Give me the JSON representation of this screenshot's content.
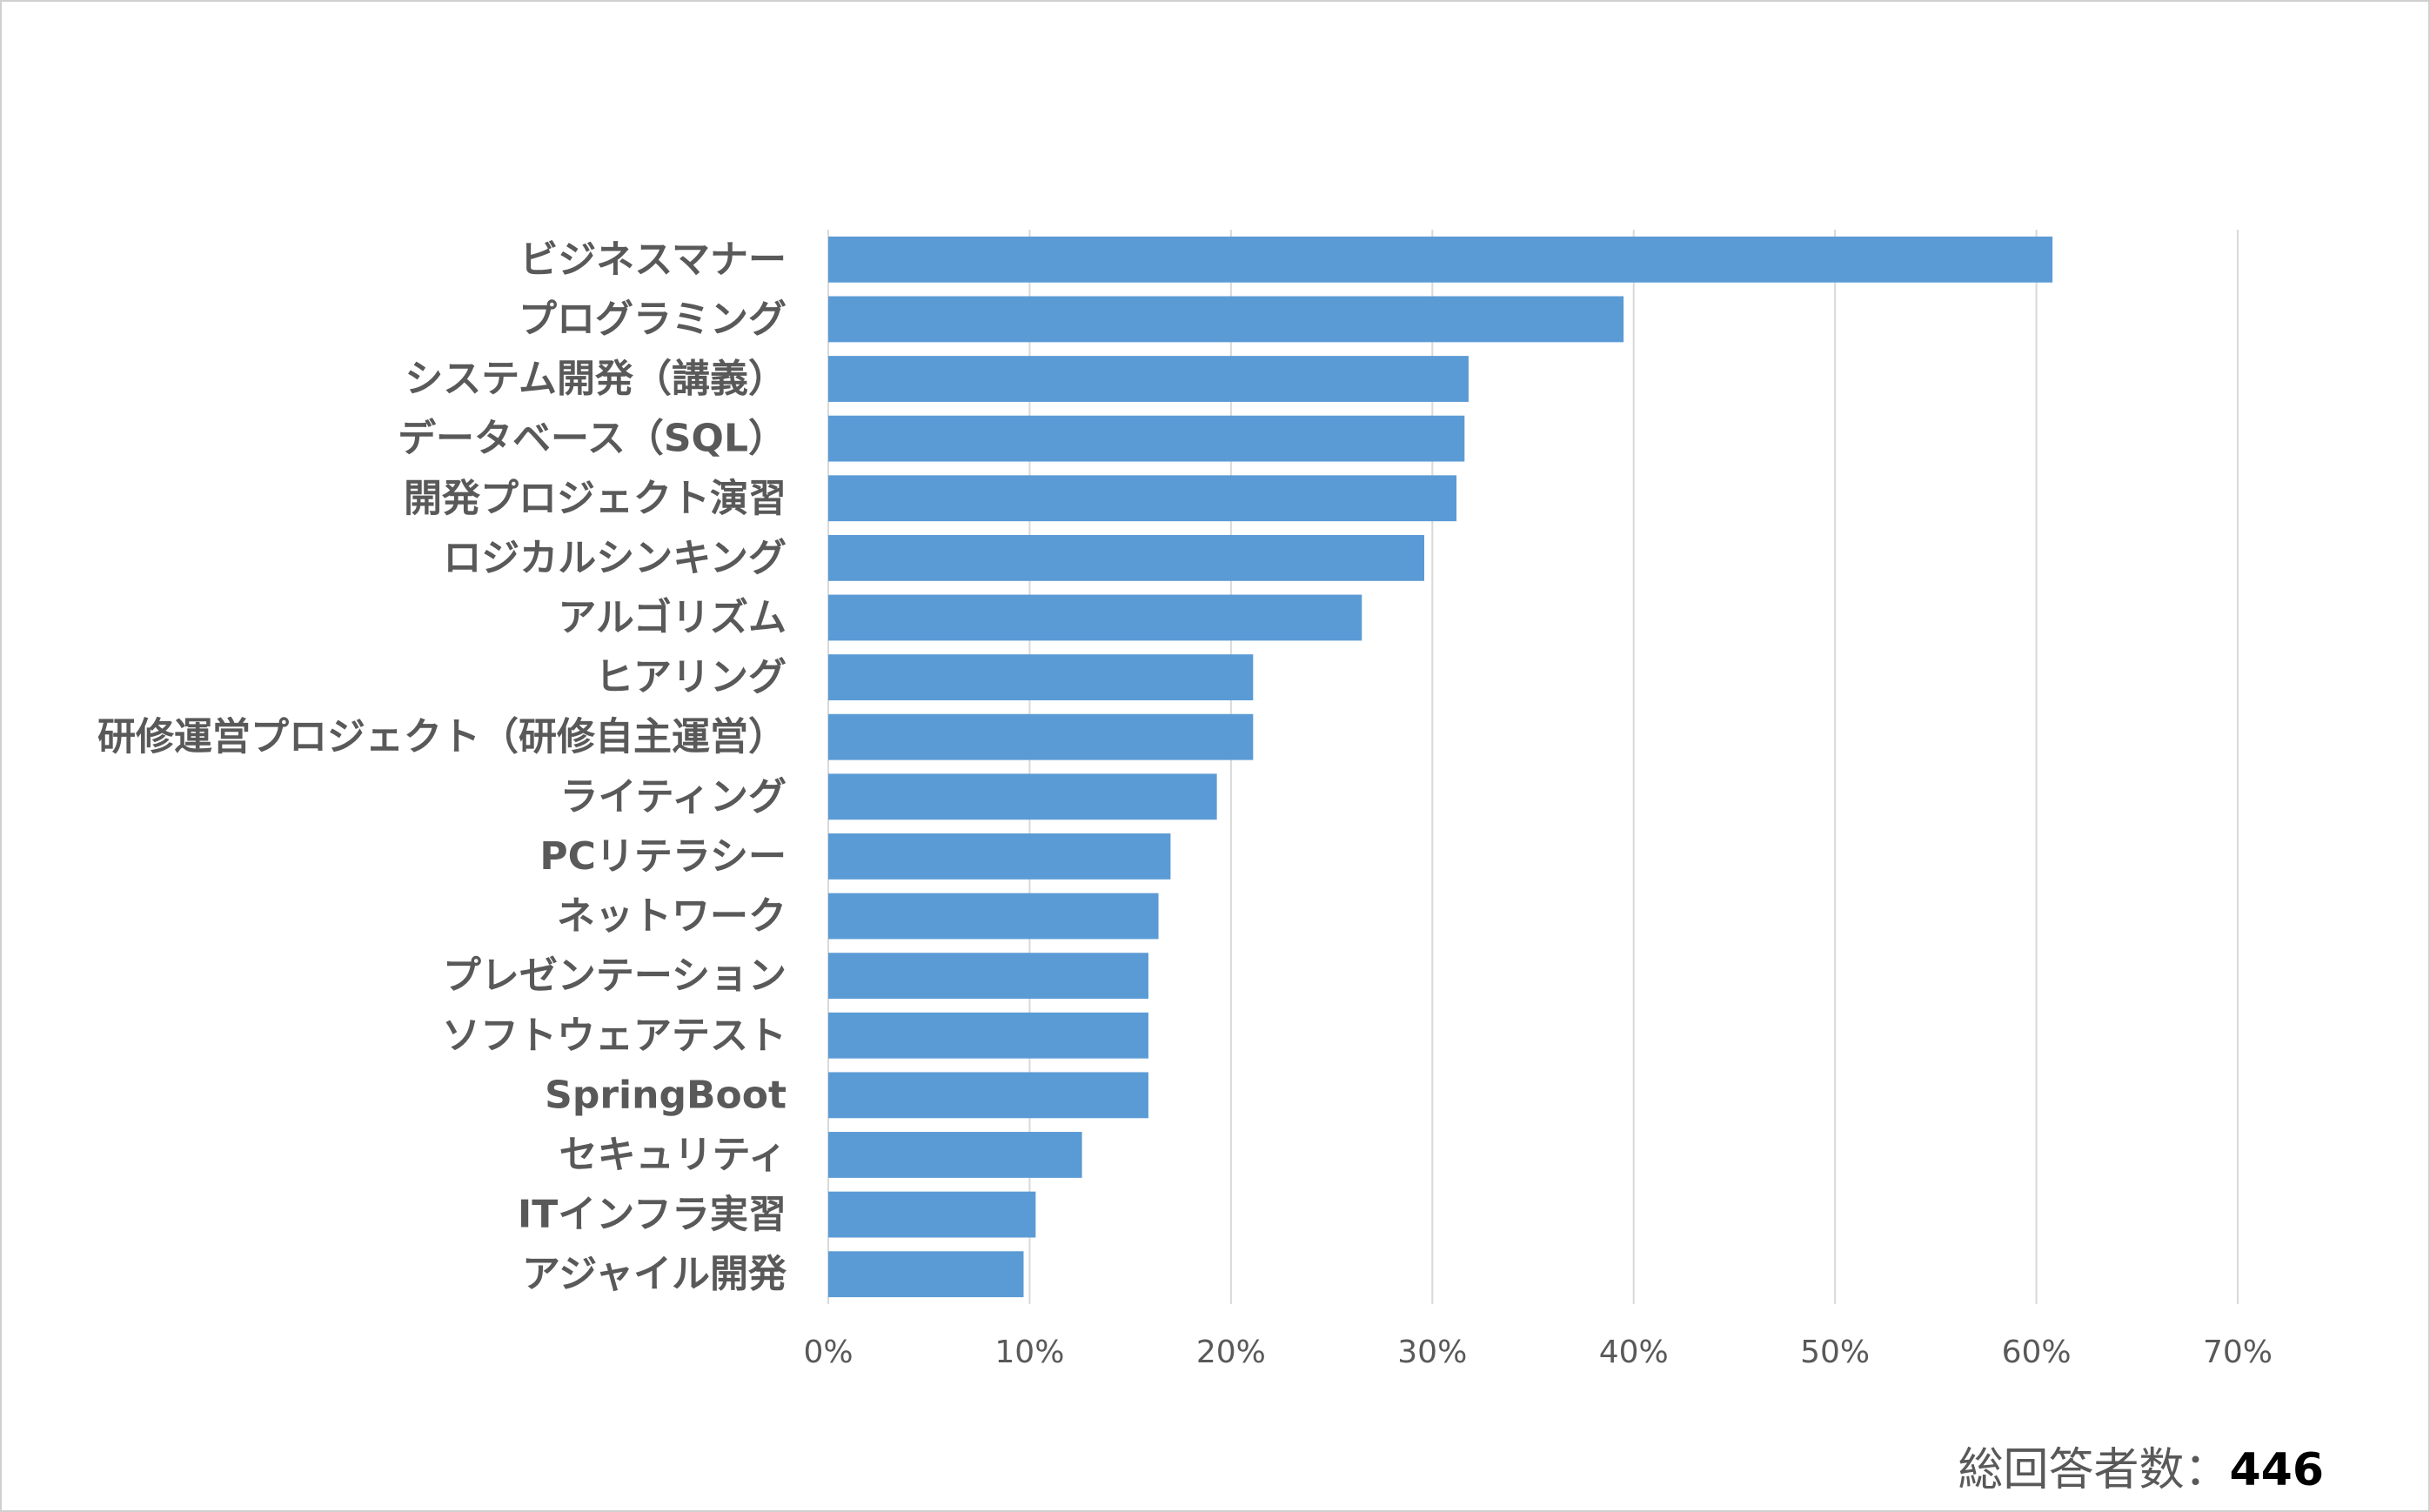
{
  "chart_data": {
    "type": "bar",
    "orientation": "horizontal",
    "categories": [
      "ビジネスマナー",
      "プログラミング",
      "システム開発（講義）",
      "データベース（SQL）",
      "開発プロジェクト演習",
      "ロジカルシンキング",
      "アルゴリズム",
      "ヒアリング",
      "研修運営プロジェクト（研修自主運営）",
      "ライティング",
      "PCリテラシー",
      "ネットワーク",
      "プレゼンテーション",
      "ソフトウェアテスト",
      "SpringBoot",
      "セキュリティ",
      "ITインフラ実習",
      "アジャイル開発"
    ],
    "values": [
      60.8,
      39.5,
      31.8,
      31.6,
      31.2,
      29.6,
      26.5,
      21.1,
      21.1,
      19.3,
      17.0,
      16.4,
      15.9,
      15.9,
      15.9,
      12.6,
      10.3,
      9.7
    ],
    "xlim": [
      0,
      70
    ],
    "ticks": [
      0,
      10,
      20,
      30,
      40,
      50,
      60,
      70
    ],
    "tick_labels": [
      "0%",
      "10%",
      "20%",
      "30%",
      "40%",
      "50%",
      "60%",
      "70%"
    ],
    "grid": true,
    "bar_color": "#5b9bd5",
    "grid_color": "#d9d9d9"
  },
  "footnote": {
    "label": "総回答者数：",
    "value": "446"
  }
}
